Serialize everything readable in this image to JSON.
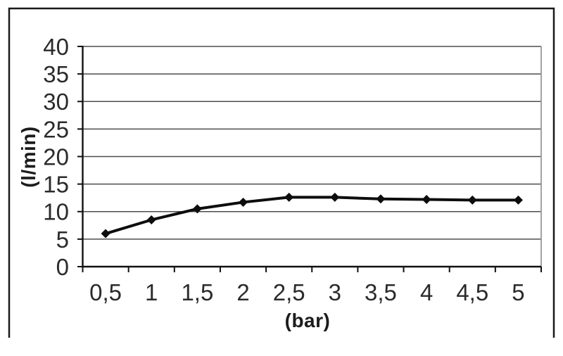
{
  "chart_data": {
    "type": "line",
    "title": "",
    "xlabel": "(bar)",
    "ylabel": "(l/min)",
    "categories": [
      "0,5",
      "1",
      "1,5",
      "2",
      "2,5",
      "3",
      "3,5",
      "4",
      "4,5",
      "5"
    ],
    "x_values": [
      0.5,
      1,
      1.5,
      2,
      2.5,
      3,
      3.5,
      4,
      4.5,
      5
    ],
    "series": [
      {
        "name": "",
        "values": [
          6.0,
          8.5,
          10.5,
          11.7,
          12.6,
          12.6,
          12.3,
          12.2,
          12.1,
          12.1
        ]
      }
    ],
    "y_tick_labels": [
      "0",
      "5",
      "10",
      "15",
      "20",
      "25",
      "30",
      "35",
      "40"
    ],
    "y_tick_values": [
      0,
      5,
      10,
      15,
      20,
      25,
      30,
      35,
      40
    ],
    "ylim": [
      0,
      40
    ],
    "grid": "horizontal",
    "legend": "none",
    "marker": "diamond",
    "colors": {
      "line": "#0d0d0d",
      "marker": "#0d0d0d",
      "gridline": "#4d4d4d",
      "axis": "#111111",
      "plot_border_right": "#999999",
      "outer_border": "#1a1a1a",
      "tick_text": "#2b2b2b",
      "title_text": "#1c1c1c",
      "background": "#ffffff"
    }
  }
}
